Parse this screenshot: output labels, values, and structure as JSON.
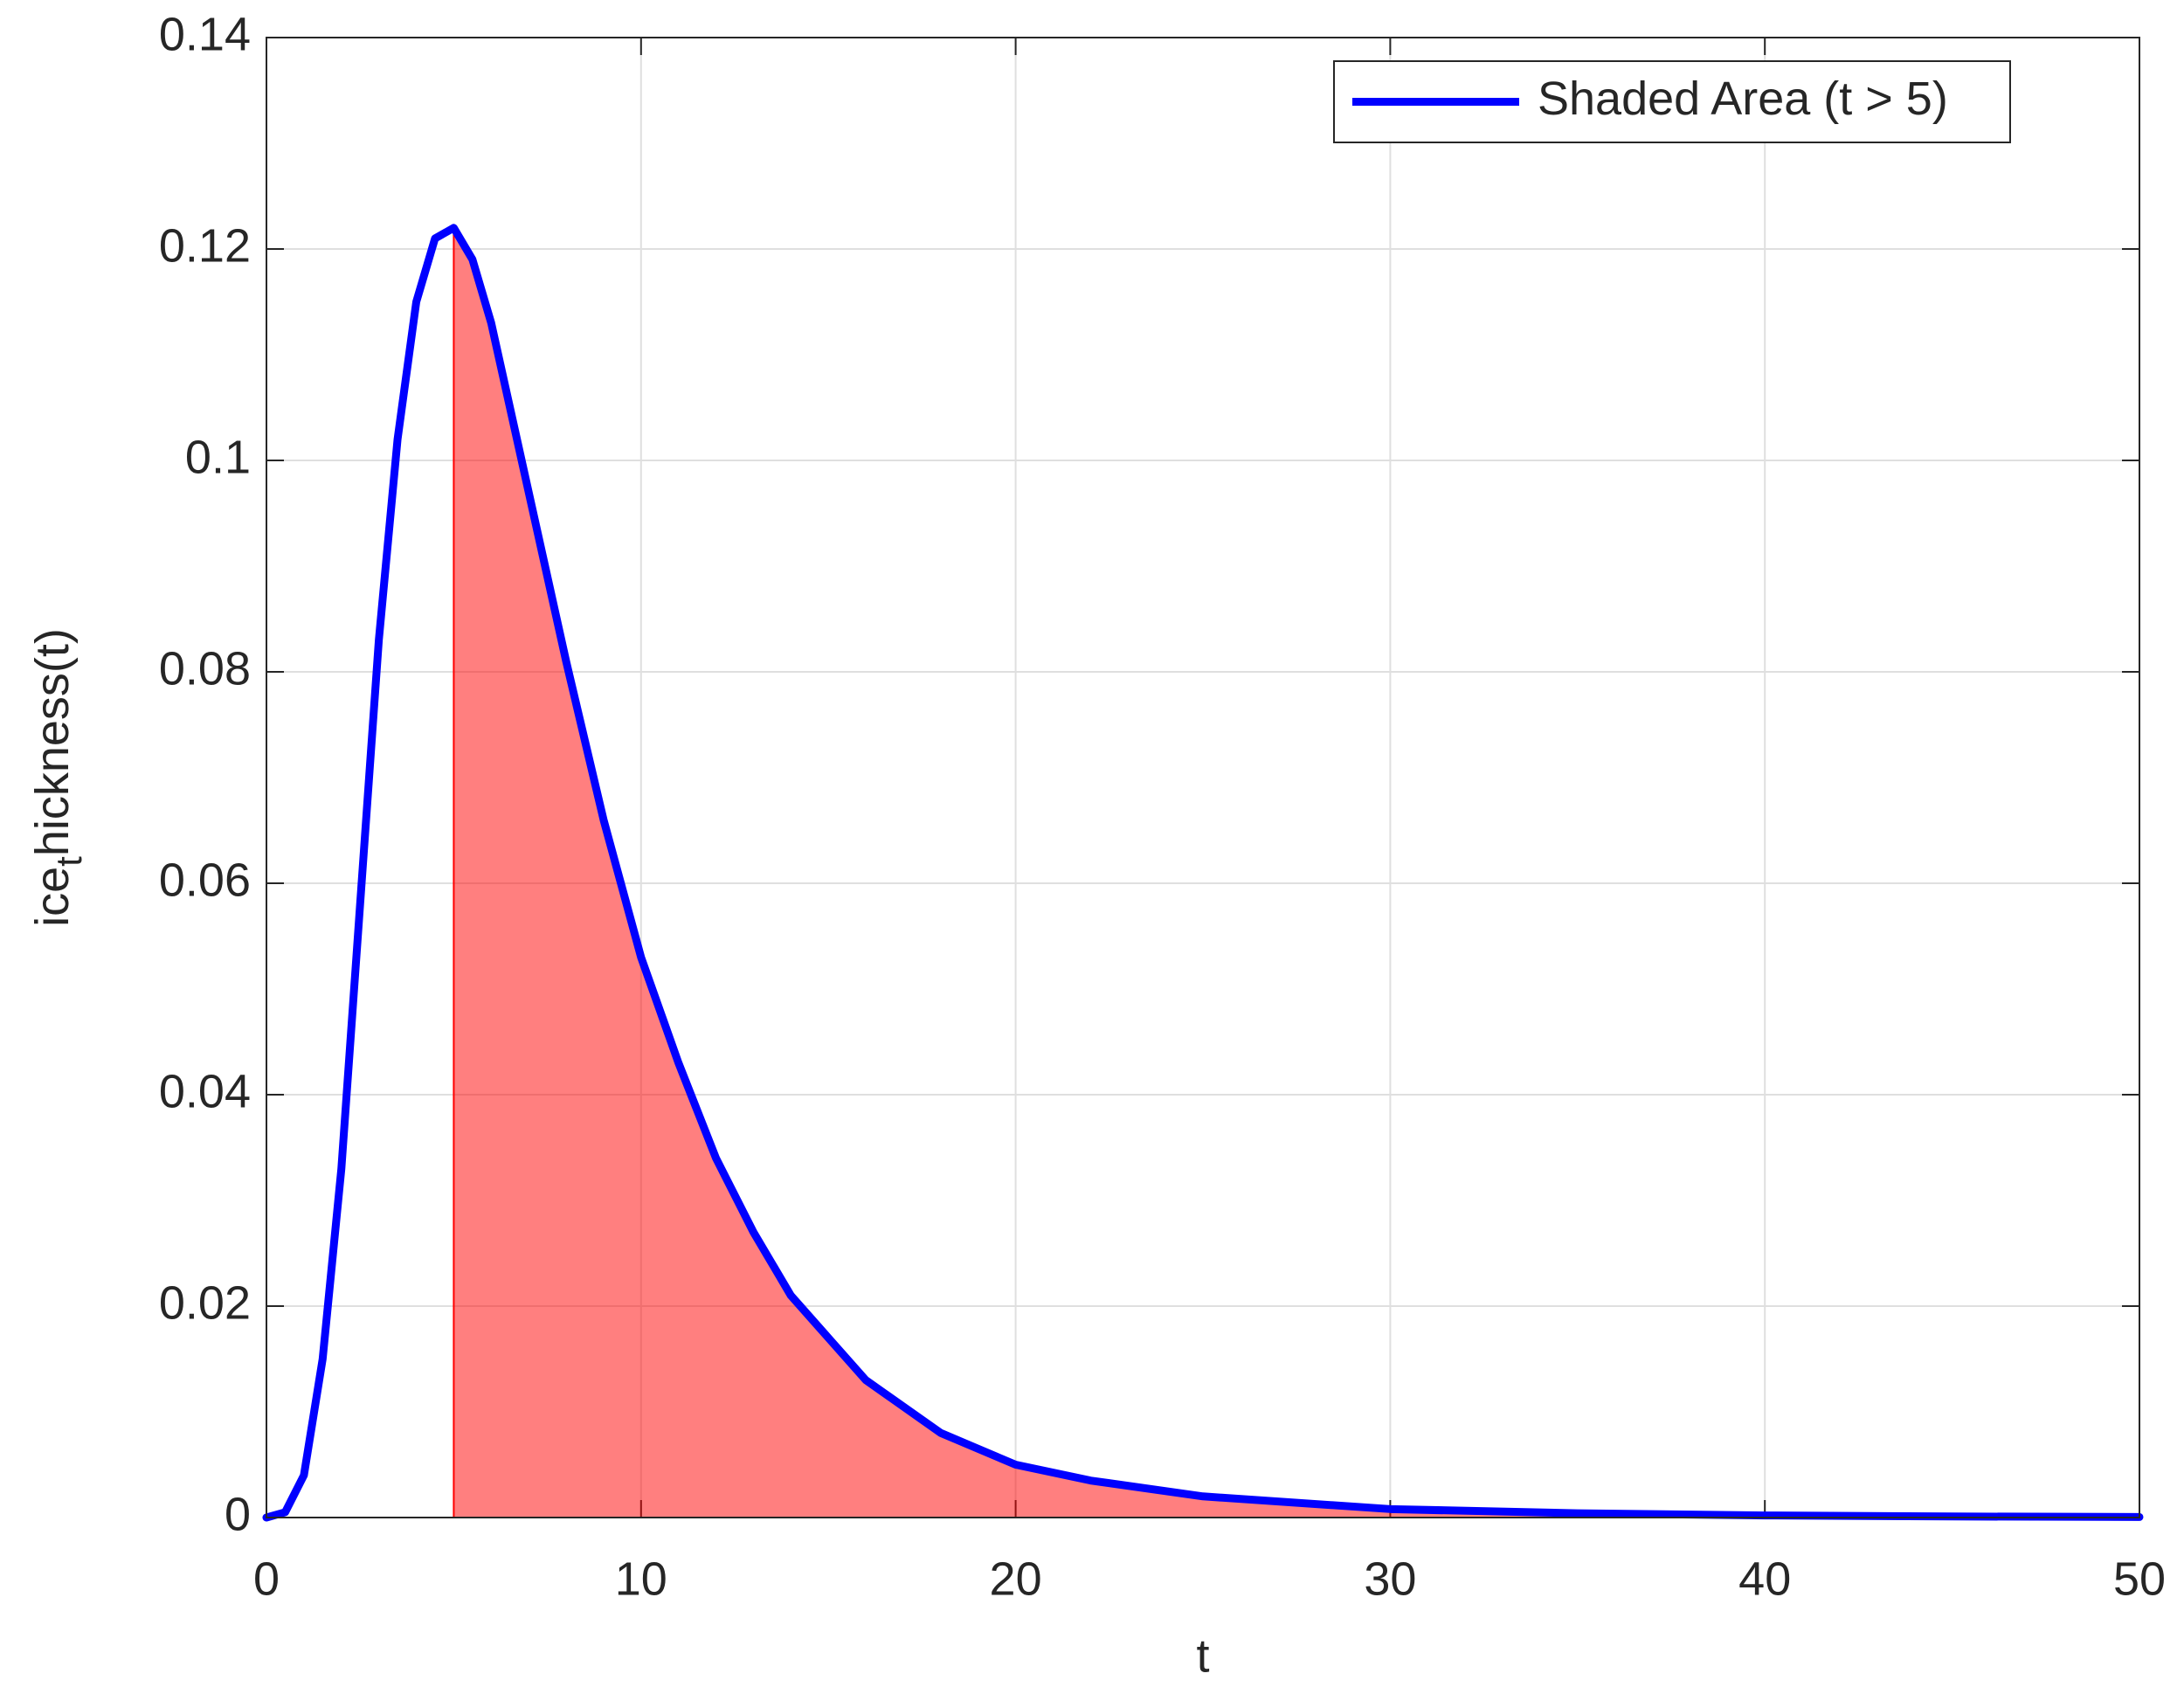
{
  "chart_data": {
    "type": "line",
    "x": [
      0,
      0.5,
      1,
      1.5,
      2,
      2.5,
      3,
      3.5,
      4,
      4.5,
      5,
      5.5,
      6,
      7,
      8,
      9,
      10,
      11,
      12,
      13,
      14,
      15,
      16,
      18,
      20,
      22,
      25,
      30,
      35,
      40,
      45,
      50
    ],
    "series": [
      {
        "name": "Shaded Area (t > 5)",
        "color": "#0000ff",
        "values": [
          0,
          0.0005,
          0.004,
          0.015,
          0.033,
          0.058,
          0.083,
          0.102,
          0.115,
          0.121,
          0.122,
          0.119,
          0.113,
          0.097,
          0.081,
          0.066,
          0.053,
          0.043,
          0.034,
          0.027,
          0.021,
          0.017,
          0.013,
          0.008,
          0.005,
          0.0035,
          0.002,
          0.0008,
          0.0004,
          0.0002,
          0.0001,
          5e-05
        ]
      }
    ],
    "shade_from": 5,
    "shade_color": "#ff0000",
    "xlabel": "t",
    "ylabel": [
      "ice",
      "t",
      "hickness(t)"
    ],
    "xlim": [
      0,
      50
    ],
    "xticks": [
      0,
      10,
      20,
      30,
      40,
      50
    ],
    "ylim": [
      0,
      0.14
    ],
    "yticks": [
      0,
      0.02,
      0.04,
      0.06,
      0.08,
      0.1,
      0.12,
      0.14
    ],
    "grid": true,
    "legend": "top-right"
  }
}
